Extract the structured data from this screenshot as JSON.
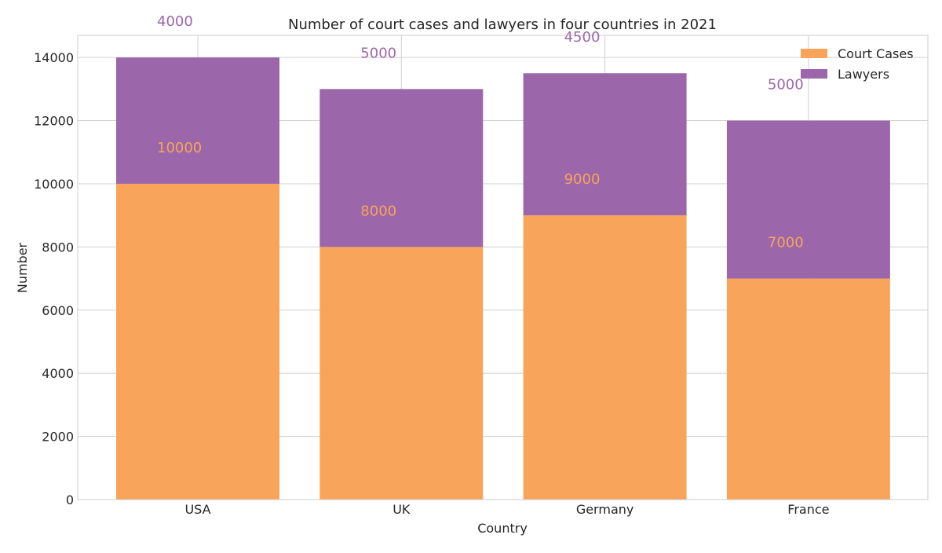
{
  "chart_data": {
    "type": "bar",
    "stacked": true,
    "title": "Number of court cases and lawyers in four countries in 2021",
    "xlabel": "Country",
    "ylabel": "Number",
    "categories": [
      "USA",
      "UK",
      "Germany",
      "France"
    ],
    "series": [
      {
        "name": "Court Cases",
        "values": [
          10000,
          8000,
          9000,
          7000
        ],
        "color": "#f8a55b"
      },
      {
        "name": "Lawyers",
        "values": [
          4000,
          5000,
          4500,
          5000
        ],
        "color": "#9c66aa"
      }
    ],
    "ylim": [
      0,
      14700
    ],
    "yticks": [
      0,
      2000,
      4000,
      6000,
      8000,
      10000,
      12000,
      14000
    ],
    "grid": true,
    "legend_position": "top-right",
    "data_labels": true
  }
}
